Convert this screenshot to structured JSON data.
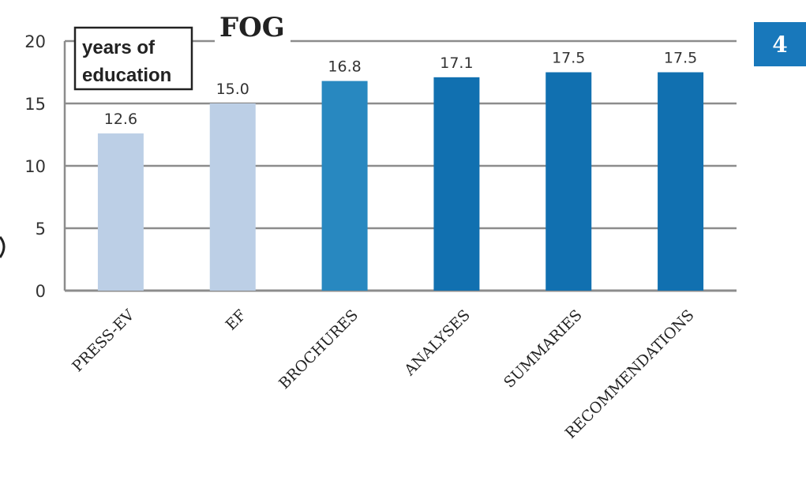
{
  "chart_data": {
    "type": "bar",
    "title": "FOG",
    "ylabel": "years of education",
    "ylabel_lines": [
      "years of",
      "education"
    ],
    "categories": [
      "PRESS-EV",
      "EF",
      "BROCHURES",
      "ANALYSES",
      "SUMMARIES",
      "RECOMMENDATIONS"
    ],
    "values": [
      12.6,
      15.0,
      16.8,
      17.1,
      17.5,
      17.5
    ],
    "data_labels": [
      "12.6",
      "15.0",
      "16.8",
      "17.1",
      "17.5",
      "17.5"
    ],
    "yticks": [
      0,
      5,
      10,
      15,
      20
    ],
    "ylim": [
      0,
      20
    ],
    "grid": true,
    "colors": [
      "#bccfe6",
      "#bccfe6",
      "#2888c0",
      "#1170b0",
      "#1170b0",
      "#1170b0"
    ],
    "badge": {
      "label": "4",
      "color": "#1878bb"
    }
  }
}
